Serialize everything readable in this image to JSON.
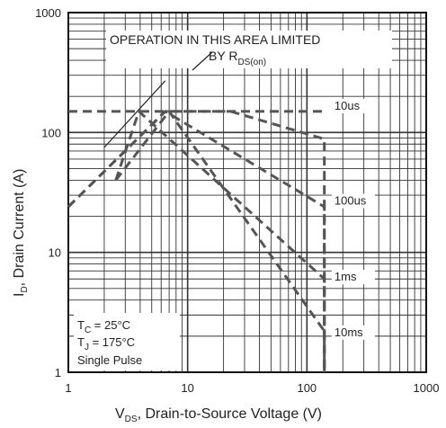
{
  "chart_data": {
    "type": "line",
    "xscale": "log",
    "yscale": "log",
    "xlim": [
      1,
      1000
    ],
    "ylim": [
      1,
      1000
    ],
    "grid": true,
    "x_ticks": [
      "1",
      "10",
      "100",
      "1000"
    ],
    "y_ticks": [
      "1",
      "10",
      "100",
      "1000"
    ],
    "xlabel": {
      "prefix": "V",
      "sub": "DS",
      "suffix": ", Drain-to-Source Voltage (V)"
    },
    "ylabel": {
      "prefix": "I",
      "sub": "D",
      "suffix": ", Drain Current (A)"
    },
    "annotation": {
      "line1": "OPERATION IN THIS AREA LIMITED",
      "line2_prefix": "BY R",
      "line2_sub": "DS(on)"
    },
    "conditions": {
      "tc": {
        "prefix": "T",
        "sub": "C",
        "suffix": " = 25°C"
      },
      "tj": {
        "prefix": "T",
        "sub": "J",
        "suffix": " = 175°C"
      },
      "pulse": "Single Pulse"
    },
    "rds_limit_line": {
      "x": [
        2,
        6.5
      ],
      "y": [
        75,
        270
      ]
    },
    "series": [
      {
        "name": "10us",
        "x": [
          1,
          6.5,
          23,
          140,
          140
        ],
        "y": [
          24,
          150,
          150,
          88,
          1
        ]
      },
      {
        "name": "100us",
        "x": [
          1,
          6.5,
          140,
          140
        ],
        "y": [
          24,
          150,
          24,
          1
        ]
      },
      {
        "name": "1ms",
        "x": [
          2.5,
          3.9,
          140,
          140
        ],
        "y": [
          40,
          150,
          6,
          1
        ]
      },
      {
        "name": "10ms",
        "x": [
          2.5,
          7,
          140,
          140
        ],
        "y": [
          40,
          150,
          2.2,
          1
        ]
      }
    ],
    "current_limit": {
      "x": [
        1,
        140
      ],
      "y": [
        150,
        150
      ]
    }
  }
}
